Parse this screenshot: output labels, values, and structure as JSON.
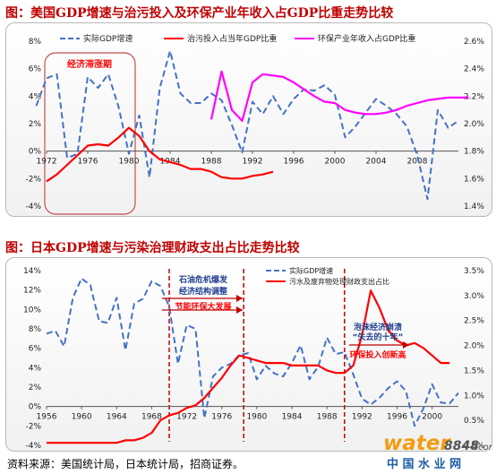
{
  "chart_data": [
    {
      "type": "line",
      "title": "图：美国GDP增速与治污投入及环保产业年收入占GDP比重走势比较",
      "x_ticks": [
        1972,
        1976,
        1980,
        1984,
        1988,
        1992,
        1996,
        2000,
        2004,
        2008
      ],
      "xlim": [
        1972,
        2012
      ],
      "y_left_ticks": [
        "8%",
        "6%",
        "4%",
        "2%",
        "0%",
        "-2%",
        "-4%"
      ],
      "y_left_lim": [
        -4,
        8
      ],
      "y_right_ticks": [
        "2.6%",
        "2.4%",
        "2.2%",
        "2.0%",
        "1.8%",
        "1.6%",
        "1.4%"
      ],
      "y_right_lim": [
        1.4,
        2.6
      ],
      "annotation": "经济滞涨期",
      "series": [
        {
          "name": "实际GDP增速",
          "axis": "left",
          "color": "#4472c4",
          "dash": true,
          "x": [
            1971,
            1972,
            1973,
            1974,
            1975,
            1976,
            1977,
            1978,
            1979,
            1980,
            1981,
            1982,
            1983,
            1984,
            1985,
            1986,
            1987,
            1988,
            1989,
            1990,
            1991,
            1992,
            1993,
            1994,
            1995,
            1996,
            1997,
            1998,
            1999,
            2000,
            2001,
            2002,
            2003,
            2004,
            2005,
            2006,
            2007,
            2008,
            2009,
            2010,
            2011,
            2012
          ],
          "y": [
            3.3,
            5.3,
            5.6,
            -0.5,
            -0.2,
            5.4,
            4.6,
            5.6,
            3.2,
            -0.2,
            2.6,
            -1.9,
            4.6,
            7.3,
            4.2,
            3.5,
            3.5,
            4.2,
            3.7,
            1.9,
            -0.1,
            3.6,
            2.7,
            4.0,
            2.7,
            3.8,
            4.5,
            4.4,
            4.8,
            4.1,
            1.0,
            1.8,
            2.8,
            3.8,
            3.3,
            2.7,
            1.8,
            -0.3,
            -3.5,
            3.0,
            1.7,
            2.2
          ]
        },
        {
          "name": "治污投入占当年GDP比重",
          "axis": "right",
          "color": "#ff0000",
          "dash": false,
          "x": [
            1972,
            1973,
            1974,
            1975,
            1976,
            1977,
            1978,
            1979,
            1980,
            1981,
            1982,
            1983,
            1984,
            1985,
            1986,
            1987,
            1988,
            1989,
            1990,
            1991,
            1992,
            1993,
            1994
          ],
          "y": [
            1.58,
            1.63,
            1.7,
            1.77,
            1.84,
            1.85,
            1.84,
            1.9,
            1.97,
            1.91,
            1.8,
            1.74,
            1.72,
            1.7,
            1.67,
            1.67,
            1.65,
            1.61,
            1.6,
            1.6,
            1.62,
            1.63,
            1.65
          ]
        },
        {
          "name": "环保产业年收入占GDP比重",
          "axis": "right",
          "color": "#ff00ff",
          "dash": false,
          "x": [
            1988,
            1989,
            1990,
            1991,
            1992,
            1993,
            1994,
            1995,
            1996,
            1997,
            1998,
            1999,
            2000,
            2001,
            2002,
            2003,
            2004,
            2005,
            2006,
            2007,
            2008,
            2009,
            2010,
            2011,
            2012,
            2013
          ],
          "y": [
            2.03,
            2.38,
            2.1,
            2.02,
            2.3,
            2.36,
            2.35,
            2.34,
            2.3,
            2.25,
            2.2,
            2.16,
            2.15,
            2.1,
            2.08,
            2.07,
            2.07,
            2.08,
            2.1,
            2.13,
            2.15,
            2.17,
            2.18,
            2.19,
            2.19,
            2.19
          ]
        }
      ]
    },
    {
      "type": "line",
      "title": "图：日本GDP增速与污染治理财政支出占比走势比较",
      "x_ticks": [
        1956,
        1960,
        1964,
        1968,
        1972,
        1976,
        1980,
        1984,
        1988,
        1992,
        1996,
        2000
      ],
      "xlim": [
        1956,
        2003
      ],
      "y_left_ticks": [
        "14%",
        "12%",
        "10%",
        "8%",
        "6%",
        "4%",
        "2%",
        "0%",
        "-2%",
        "-4%"
      ],
      "y_left_lim": [
        -4,
        14
      ],
      "y_right_ticks": [
        "3.5%",
        "3.0%",
        "2.5%",
        "2.0%",
        "1.5%",
        "1.0%",
        "0.5%",
        "0.0%"
      ],
      "y_right_lim": [
        0,
        3.5
      ],
      "annotations": [
        {
          "text": "石油危机爆发"
        },
        {
          "text": "经济结构调整"
        },
        {
          "text": "节能环保大发展"
        },
        {
          "text": "泡沫经济崩溃"
        },
        {
          "text": "“失去的十年”"
        },
        {
          "text": "环保投入创新高"
        }
      ],
      "series": [
        {
          "name": "实际GDP增速",
          "axis": "left",
          "color": "#4472c4",
          "dash": true,
          "x": [
            1956,
            1957,
            1958,
            1959,
            1960,
            1961,
            1962,
            1963,
            1964,
            1965,
            1966,
            1967,
            1968,
            1969,
            1970,
            1971,
            1972,
            1973,
            1974,
            1975,
            1976,
            1977,
            1978,
            1979,
            1980,
            1981,
            1982,
            1983,
            1984,
            1985,
            1986,
            1987,
            1988,
            1989,
            1990,
            1991,
            1992,
            1993,
            1994,
            1995,
            1996,
            1997,
            1998,
            1999,
            2000,
            2001,
            2002,
            2003
          ],
          "y": [
            7.5,
            7.8,
            6.2,
            11.2,
            13.2,
            12.5,
            8.8,
            8.6,
            11.2,
            5.8,
            10.6,
            11.1,
            12.9,
            12.4,
            10.3,
            4.4,
            8.4,
            8.0,
            -1.2,
            3.1,
            4.0,
            4.4,
            5.3,
            5.5,
            2.8,
            4.2,
            3.4,
            3.1,
            4.5,
            6.3,
            2.8,
            4.1,
            7.1,
            5.4,
            5.6,
            3.3,
            0.8,
            0.2,
            0.9,
            1.9,
            2.6,
            1.6,
            -2.0,
            -0.2,
            2.3,
            0.4,
            0.3,
            1.4
          ]
        },
        {
          "name": "污水及废弃物处理财政支出占比",
          "axis": "right",
          "color": "#ff0000",
          "dash": false,
          "x": [
            1956,
            1958,
            1960,
            1962,
            1964,
            1965,
            1966,
            1967,
            1968,
            1969,
            1970,
            1971,
            1972,
            1973,
            1974,
            1975,
            1976,
            1977,
            1978,
            1979,
            1980,
            1981,
            1982,
            1983,
            1984,
            1985,
            1986,
            1987,
            1988,
            1989,
            1990,
            1991,
            1992,
            1993,
            1994,
            1995,
            1996,
            1997,
            1998,
            1999,
            2000,
            2001,
            2002
          ],
          "y": [
            0.05,
            0.05,
            0.05,
            0.05,
            0.05,
            0.1,
            0.1,
            0.15,
            0.25,
            0.5,
            0.6,
            0.65,
            0.75,
            0.8,
            0.95,
            1.15,
            1.35,
            1.6,
            1.8,
            1.75,
            1.7,
            1.65,
            1.65,
            1.65,
            1.6,
            1.6,
            1.6,
            1.6,
            1.5,
            1.45,
            1.45,
            1.6,
            2.2,
            3.1,
            2.75,
            2.3,
            2.1,
            2.0,
            2.05,
            1.95,
            1.8,
            1.65,
            1.65
          ]
        }
      ]
    }
  ],
  "source": "资料来源：美国统计局，日本统计局，招商证券。",
  "watermark": {
    "brand_word": "water",
    "brand_digits": "8848",
    "brand_domain": ".com",
    "cn_name": "中 国 水 业 网"
  }
}
